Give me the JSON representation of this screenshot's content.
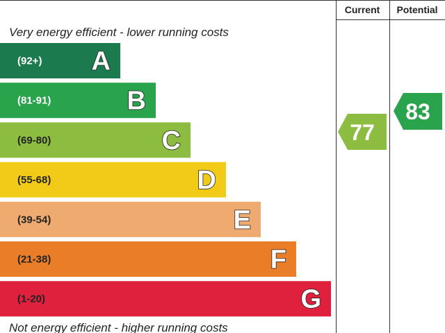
{
  "header": {
    "current": "Current",
    "potential": "Potential"
  },
  "top_note": "Very energy efficient - lower running costs",
  "bottom_note": "Not energy efficient - higher running costs",
  "bands": [
    {
      "range": "(92+)",
      "letter": "A",
      "color": "#1b7b4e"
    },
    {
      "range": "(81-91)",
      "letter": "B",
      "color": "#29a34c"
    },
    {
      "range": "(69-80)",
      "letter": "C",
      "color": "#8cbd41"
    },
    {
      "range": "(55-68)",
      "letter": "D",
      "color": "#f2cb18"
    },
    {
      "range": "(39-54)",
      "letter": "E",
      "color": "#efab6f"
    },
    {
      "range": "(21-38)",
      "letter": "F",
      "color": "#ea7d27"
    },
    {
      "range": "(1-20)",
      "letter": "G",
      "color": "#df213d"
    }
  ],
  "current": {
    "value": "77",
    "color": "#8cbd41"
  },
  "potential": {
    "value": "83",
    "color": "#29a34c"
  }
}
